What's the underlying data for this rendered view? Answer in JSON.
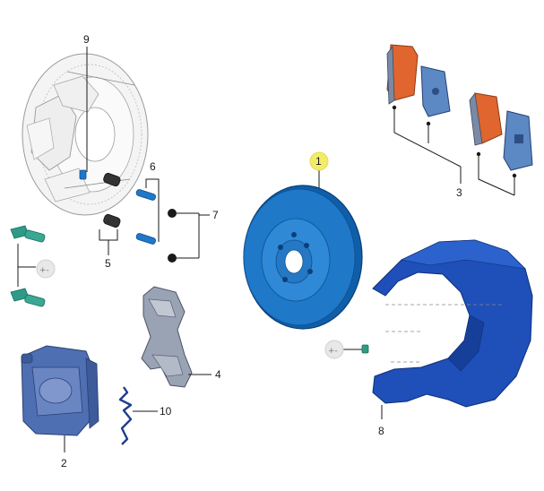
{
  "diagram": {
    "callouts": {
      "c1": "1",
      "c2": "2",
      "c3": "3",
      "c4": "4",
      "c5": "5",
      "c6": "6",
      "c7": "7",
      "c8": "8",
      "c9": "9",
      "c10": "10"
    },
    "highlighted_callout": "1",
    "symbols": {
      "plus_minus": "+-"
    },
    "colors": {
      "part_blue": "#1f78c8",
      "part_blue_dark": "#0f4f92",
      "pad_orange": "#e0652e",
      "teal_bolt": "#2f9a88",
      "ghost_outline": "#9a9a9a",
      "highlight_yellow": "#f3ec6a"
    }
  }
}
